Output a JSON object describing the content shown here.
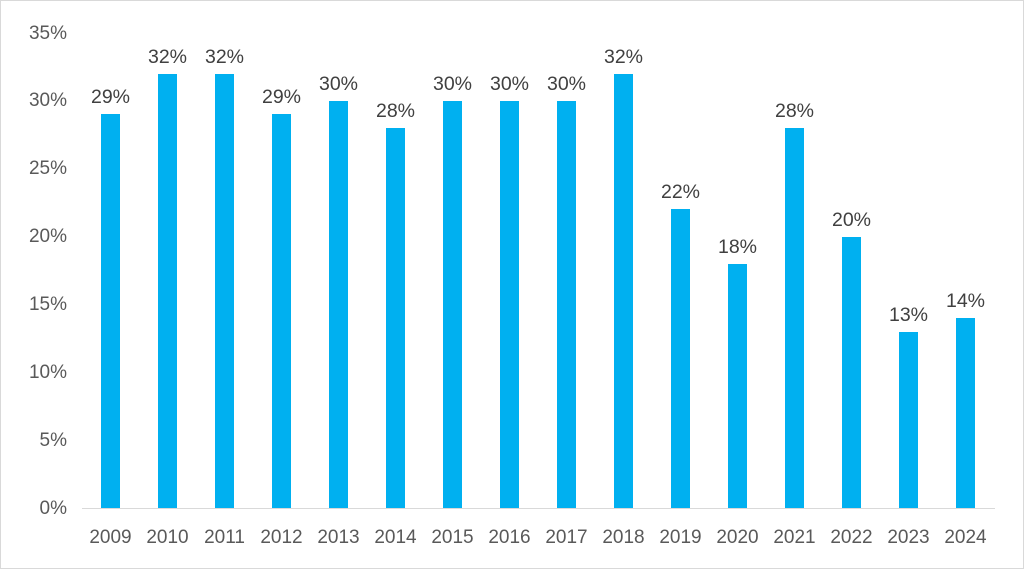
{
  "chart_data": {
    "type": "bar",
    "title": "",
    "xlabel": "",
    "ylabel": "",
    "categories": [
      "2009",
      "2010",
      "2011",
      "2012",
      "2013",
      "2014",
      "2015",
      "2016",
      "2017",
      "2018",
      "2019",
      "2020",
      "2021",
      "2022",
      "2023",
      "2024"
    ],
    "values": [
      29,
      32,
      32,
      29,
      30,
      28,
      30,
      30,
      30,
      32,
      22,
      18,
      28,
      20,
      13,
      14
    ],
    "value_labels": [
      "29%",
      "32%",
      "32%",
      "29%",
      "30%",
      "28%",
      "30%",
      "30%",
      "30%",
      "32%",
      "22%",
      "18%",
      "28%",
      "20%",
      "13%",
      "14%"
    ],
    "ylim": [
      0,
      35
    ],
    "y_tick_step": 5,
    "y_tick_labels": [
      "0%",
      "5%",
      "10%",
      "15%",
      "20%",
      "25%",
      "30%",
      "35%"
    ],
    "grid": false,
    "legend": "none",
    "data_labels_shown": true,
    "colors": {
      "bar": "#00b0f0",
      "data_label": "#404040",
      "axis_label": "#595959",
      "axis_line": "#d9d9d9",
      "frame_border": "#d9d9d9",
      "background": "#ffffff"
    }
  }
}
